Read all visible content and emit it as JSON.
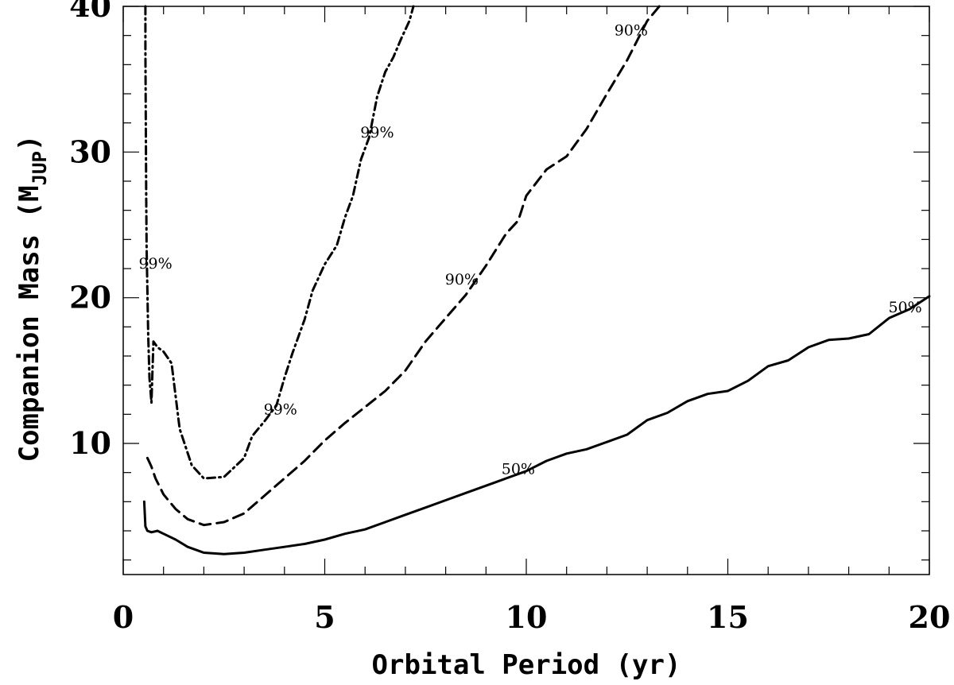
{
  "chart_data": {
    "type": "line",
    "title": "",
    "xlabel": "Orbital Period (yr)",
    "ylabel": {
      "main": "Companion Mass (M",
      "subscript": "JUP",
      "close": ")"
    },
    "xlim": [
      0,
      20
    ],
    "ylim": [
      1,
      40
    ],
    "x_ticks": [
      0,
      5,
      10,
      15,
      20
    ],
    "x_tick_labels": [
      "0",
      "5",
      "10",
      "15",
      "20"
    ],
    "y_ticks": [
      10,
      20,
      30,
      40
    ],
    "y_tick_labels": [
      "10",
      "20",
      "30",
      "40"
    ],
    "grid": false,
    "legend": "none",
    "series": [
      {
        "label_text": "50%",
        "line_style": "solid",
        "x": [
          0.52,
          0.55,
          0.6,
          0.7,
          0.85,
          1.0,
          1.3,
          1.6,
          2.0,
          2.5,
          3.0,
          3.5,
          4.0,
          4.5,
          5.0,
          5.5,
          6.0,
          6.5,
          7.0,
          7.5,
          8.0,
          8.5,
          9.0,
          9.5,
          10.0,
          10.5,
          11.0,
          11.5,
          12.0,
          12.5,
          13.0,
          13.5,
          14.0,
          14.5,
          15.0,
          15.5,
          16.0,
          16.5,
          17.0,
          17.5,
          18.0,
          18.5,
          19.0,
          19.5,
          20.0
        ],
        "y": [
          6.0,
          4.3,
          4.0,
          3.9,
          4.0,
          3.8,
          3.4,
          2.9,
          2.5,
          2.4,
          2.5,
          2.7,
          2.9,
          3.1,
          3.4,
          3.8,
          4.1,
          4.6,
          5.1,
          5.6,
          6.1,
          6.6,
          7.1,
          7.6,
          8.1,
          8.8,
          9.3,
          9.6,
          10.1,
          10.6,
          11.6,
          12.1,
          12.9,
          13.4,
          13.6,
          14.3,
          15.3,
          15.7,
          16.6,
          17.1,
          17.2,
          17.5,
          18.6,
          19.2,
          20.1
        ],
        "annotations": [
          {
            "text": "50%",
            "x": 9.8,
            "y": 7.9
          },
          {
            "text": "50%",
            "x": 19.4,
            "y": 19.0
          }
        ]
      },
      {
        "label_text": "90%",
        "line_style": "dashed",
        "x": [
          0.6,
          0.65,
          0.7,
          0.8,
          1.0,
          1.3,
          1.6,
          2.0,
          2.5,
          3.0,
          3.5,
          4.0,
          4.5,
          5.0,
          5.5,
          6.0,
          6.5,
          7.0,
          7.5,
          8.0,
          8.5,
          9.0,
          9.5,
          9.8,
          10.0,
          10.5,
          11.0,
          11.5,
          12.0,
          12.5,
          13.0,
          13.3
        ],
        "y": [
          9.0,
          8.7,
          8.4,
          7.6,
          6.5,
          5.5,
          4.8,
          4.4,
          4.6,
          5.2,
          6.4,
          7.6,
          8.8,
          10.2,
          11.4,
          12.5,
          13.6,
          15.0,
          17.0,
          18.6,
          20.2,
          22.2,
          24.4,
          25.3,
          27.0,
          28.8,
          29.7,
          31.6,
          34.0,
          36.3,
          39.0,
          40.0
        ],
        "annotations": [
          {
            "text": "90%",
            "x": 8.4,
            "y": 20.9
          },
          {
            "text": "90%",
            "x": 12.6,
            "y": 38.0
          }
        ]
      },
      {
        "label_text": "99%",
        "line_style": "dash-dot",
        "x": [
          0.55,
          0.55,
          0.56,
          0.57,
          0.58,
          0.6,
          0.62,
          0.65,
          0.7,
          0.75,
          0.85,
          1.0,
          1.2,
          1.4,
          1.7,
          2.0,
          2.5,
          3.0,
          3.2,
          3.5,
          3.8,
          4.0,
          4.2,
          4.5,
          4.7,
          5.0,
          5.3,
          5.5,
          5.7,
          5.9,
          6.1,
          6.3,
          6.5,
          6.7,
          6.9,
          7.1,
          7.2
        ],
        "y": [
          40.0,
          37.0,
          32.0,
          27.0,
          23.5,
          20.5,
          17.5,
          14.5,
          12.8,
          17.0,
          16.6,
          16.3,
          15.5,
          11.0,
          8.5,
          7.6,
          7.7,
          9.0,
          10.5,
          11.5,
          12.6,
          14.5,
          16.2,
          18.5,
          20.5,
          22.3,
          23.6,
          25.5,
          27.0,
          29.5,
          31.0,
          33.8,
          35.5,
          36.5,
          37.8,
          39.0,
          40.0
        ],
        "annotations": [
          {
            "text": "99%",
            "x": 0.8,
            "y": 22.0
          },
          {
            "text": "99%",
            "x": 3.9,
            "y": 12.0
          },
          {
            "text": "99%",
            "x": 6.3,
            "y": 31.0
          }
        ]
      }
    ]
  }
}
